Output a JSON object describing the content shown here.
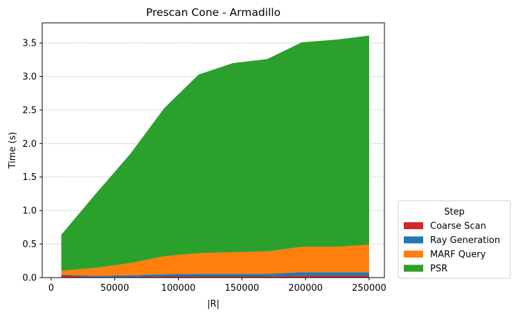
{
  "chart_data": {
    "type": "area",
    "stacked": true,
    "title": "Prescan Cone - Armadillo",
    "xlabel": "|R|",
    "ylabel": "Time (s)",
    "xlim": [
      -7000,
      262000
    ],
    "ylim": [
      0,
      3.8
    ],
    "xticks": [
      0,
      50000,
      100000,
      150000,
      200000,
      250000
    ],
    "yticks": [
      0.0,
      0.5,
      1.0,
      1.5,
      2.0,
      2.5,
      3.0,
      3.5
    ],
    "ytick_labels": [
      "0.0",
      "0.5",
      "1.0",
      "1.5",
      "2.0",
      "2.5",
      "3.0",
      "3.5"
    ],
    "grid": "y dotted",
    "legend": {
      "title": "Step",
      "placement": "outside lower right"
    },
    "x": [
      8000,
      35000,
      62000,
      89000,
      116000,
      143000,
      170000,
      197000,
      224000,
      250000
    ],
    "series": [
      {
        "name": "Coarse Scan",
        "color": "#d62728",
        "values": [
          0.04,
          0.005,
          0.01,
          0.02,
          0.02,
          0.02,
          0.02,
          0.03,
          0.03,
          0.03
        ]
      },
      {
        "name": "Ray Generation",
        "color": "#1f77b4",
        "values": [
          0.005,
          0.02,
          0.025,
          0.03,
          0.035,
          0.035,
          0.035,
          0.05,
          0.05,
          0.05
        ]
      },
      {
        "name": "MARF Query",
        "color": "#ff7f0e",
        "values": [
          0.06,
          0.12,
          0.18,
          0.27,
          0.31,
          0.325,
          0.335,
          0.38,
          0.38,
          0.41
        ]
      },
      {
        "name": "PSR",
        "color": "#2ca02c",
        "values": [
          0.535,
          1.105,
          1.625,
          2.21,
          2.665,
          2.82,
          2.87,
          3.05,
          3.09,
          3.12
        ]
      }
    ]
  }
}
